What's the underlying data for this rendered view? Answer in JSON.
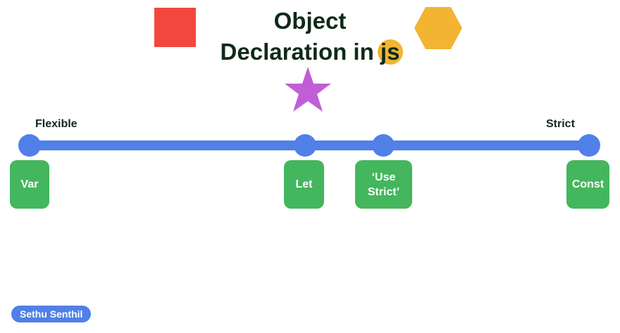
{
  "title": {
    "line1": "Object",
    "line2_prefix": "Declaration in ",
    "line2_highlight": "js"
  },
  "scale": {
    "left_label": "Flexible",
    "right_label": "Strict"
  },
  "declarations": [
    {
      "label": "Var"
    },
    {
      "label": "Let"
    },
    {
      "label": "‘Use Strict’"
    },
    {
      "label": "Const"
    }
  ],
  "author": "Sethu Senthil",
  "colors": {
    "track": "#5080e8",
    "card": "#44b65d",
    "square": "#f2473c",
    "hexagon": "#f3b431",
    "star": "#c05ed8",
    "js_highlight": "#f3b431",
    "title_text": "#0f2a1a"
  },
  "icons": {
    "square": "red-square-shape",
    "hexagon": "yellow-hexagon-shape",
    "star": "purple-star-shape"
  }
}
